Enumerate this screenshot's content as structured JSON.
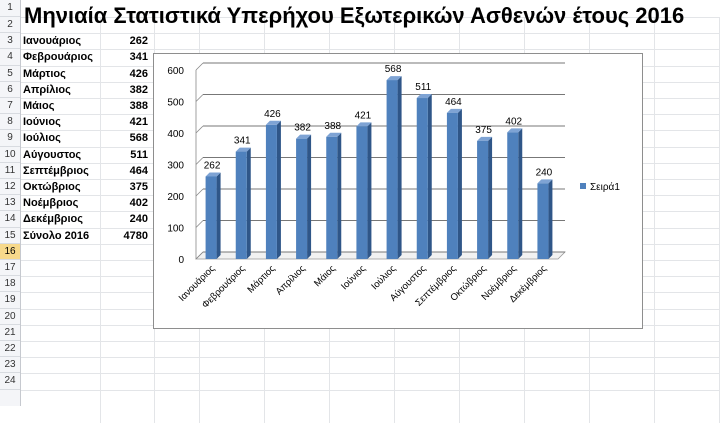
{
  "title": "Μηνιαία Στατιστικά Υπερήχου Εξωτερικών Ασθενών έτους 2016",
  "row_numbers": [
    "1",
    "2",
    "3",
    "4",
    "5",
    "6",
    "7",
    "8",
    "9",
    "10",
    "11",
    "12",
    "13",
    "14",
    "15",
    "16",
    "17",
    "18",
    "19",
    "20",
    "21",
    "22",
    "23",
    "24"
  ],
  "selected_row": "16",
  "table": {
    "rows": [
      {
        "month": "Ιανουάριος",
        "value": "262"
      },
      {
        "month": "Φεβρουάριος",
        "value": "341"
      },
      {
        "month": "Μάρτιος",
        "value": "426"
      },
      {
        "month": "Απρίλιος",
        "value": "382"
      },
      {
        "month": "Μάιος",
        "value": "388"
      },
      {
        "month": "Ιούνιος",
        "value": "421"
      },
      {
        "month": "Ιούλιος",
        "value": "568"
      },
      {
        "month": "Αύγουστος",
        "value": "511"
      },
      {
        "month": "Σεπτέμβριος",
        "value": "464"
      },
      {
        "month": "Οκτώβριος",
        "value": "375"
      },
      {
        "month": "Νοέμβριος",
        "value": "402"
      },
      {
        "month": "Δεκέμβριος",
        "value": "240"
      }
    ],
    "total_label": "Σύνολο 2016",
    "total_value": "4780"
  },
  "chart_data": {
    "type": "bar",
    "categories": [
      "Ιανουάριος",
      "Φεβρουάριος",
      "Μάρτιος",
      "Απρίλιος",
      "Μάιος",
      "Ιούνιος",
      "Ιούλιος",
      "Αύγουστος",
      "Σεπτέμβριος",
      "Οκτώβριος",
      "Νοέμβριος",
      "Δεκέμβριος"
    ],
    "series": [
      {
        "name": "Σειρά1",
        "values": [
          262,
          341,
          426,
          382,
          388,
          421,
          568,
          511,
          464,
          375,
          402,
          240
        ]
      }
    ],
    "title": "",
    "xlabel": "",
    "ylabel": "",
    "ylim": [
      0,
      600
    ],
    "yticks": [
      0,
      100,
      200,
      300,
      400,
      500,
      600
    ],
    "grid": true,
    "legend": "right",
    "bar_color": "#4f81bd",
    "data_labels": true
  }
}
